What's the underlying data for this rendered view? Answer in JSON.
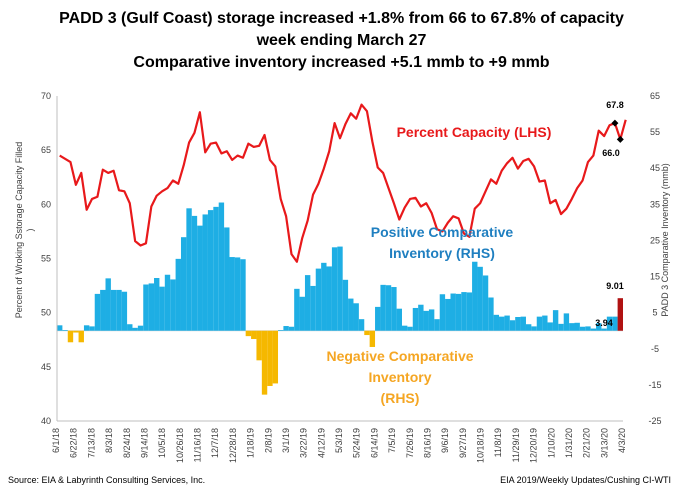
{
  "chart_data": {
    "type": "bar+line",
    "title_lines": [
      "PADD 3 (Gulf Coast) storage increased +1.8% from 66 to 67.8% of capacity",
      "week ending March 27",
      "Comparative inventory increased +5.1 mmb to +9 mmb"
    ],
    "ylabel": "Percent of Wroking Sstorage Capacity Filled",
    "ylabel_cont": ")",
    "y2label": "PADD 3 Comparative Inventory (mmb)",
    "ylim": [
      40,
      70
    ],
    "y2lim": [
      -25,
      65
    ],
    "lhs_ticks": [
      40,
      45,
      50,
      55,
      60,
      65,
      70
    ],
    "rhs_ticks": [
      -25,
      -15,
      -5,
      5,
      15,
      25,
      35,
      45,
      55,
      65
    ],
    "x_tick_labels": [
      "6/1/18",
      "6/22/18",
      "7/13/18",
      "8/3/18",
      "8/24/18",
      "9/14/18",
      "10/5/18",
      "10/26/18",
      "11/16/18",
      "12/7/18",
      "12/28/18",
      "1/18/19",
      "2/8/19",
      "3/1/19",
      "3/22/19",
      "4/12/19",
      "5/3/19",
      "5/24/19",
      "6/14/19",
      "7/5/19",
      "7/26/19",
      "8/16/19",
      "9/6/19",
      "9/27/19",
      "10/18/19",
      "11/8/19",
      "11/29/19",
      "12/20/19",
      "1/10/20",
      "1/31/20",
      "2/21/20",
      "3/13/20",
      "4/3/20"
    ],
    "series": [
      {
        "name": "Percent Capacity (LHS)",
        "axis": "left",
        "values": [
          64.5,
          64.2,
          63.9,
          61.8,
          62.9,
          59.5,
          60.5,
          60.7,
          63.2,
          62.9,
          63.1,
          61.3,
          61.2,
          60.1,
          56.6,
          56.2,
          56.4,
          59.8,
          60.8,
          61.2,
          61.5,
          62.2,
          61.9,
          63.6,
          65.7,
          66.6,
          68.5,
          64.8,
          65.6,
          65.7,
          64.7,
          64.9,
          64.1,
          64.5,
          64.3,
          65.6,
          65.3,
          65.4,
          66.4,
          64.1,
          63.5,
          60.5,
          58.9,
          55.4,
          54.7,
          56.9,
          58.5,
          60.9,
          61.9,
          63.3,
          64.9,
          67.5,
          66.1,
          67.4,
          68.4,
          67.9,
          69.2,
          68.6,
          65.8,
          63.4,
          62.9,
          61.5,
          60.1,
          58.6,
          59.7,
          60.5,
          60.6,
          59.8,
          60.1,
          59.2,
          57.7,
          57.5,
          58.3,
          58.9,
          58.7,
          57.3,
          57.0,
          59.6,
          60.1,
          61.2,
          62.3,
          61.9,
          63.1,
          63.8,
          64.3,
          63.3,
          64.0,
          64.2,
          63.5,
          62.1,
          62.2,
          60.1,
          60.4,
          59.1,
          59.6,
          60.5,
          61.5,
          62.2,
          63.9,
          64.5,
          66.8,
          66.3,
          67.3,
          67.5,
          66.0,
          67.8
        ]
      },
      {
        "name": "Comparative Inventory (RHS)",
        "axis": "right",
        "values": [
          1.5,
          0.2,
          -3.2,
          -0.5,
          -3.2,
          1.5,
          1.2,
          10.2,
          11.3,
          14.5,
          11.3,
          11.3,
          10.8,
          1.8,
          0.8,
          1.4,
          12.8,
          13.1,
          14.6,
          12.2,
          15.5,
          14.2,
          19.9,
          25.9,
          33.9,
          31.8,
          29.1,
          32.2,
          33.4,
          34.3,
          35.5,
          28.6,
          20.4,
          20.3,
          19.8,
          -1.5,
          -2.3,
          -8.2,
          -17.7,
          -15.3,
          -14.6,
          0.2,
          1.3,
          1.1,
          11.6,
          9.4,
          15.4,
          12.4,
          17.2,
          18.8,
          17.8,
          23.1,
          23.3,
          14.1,
          8.9,
          7.6,
          3.2,
          -1.2,
          -4.5,
          6.6,
          12.7,
          12.6,
          12.1,
          6.1,
          1.4,
          1.1,
          6.3,
          7.2,
          5.5,
          5.9,
          3.2,
          10.1,
          8.8,
          10.3,
          10.2,
          10.7,
          10.6,
          19.1,
          17.7,
          15.3,
          9.2,
          4.4,
          3.9,
          4.2,
          2.9,
          3.8,
          3.9,
          1.8,
          1.2,
          3.9,
          4.2,
          2.3,
          5.7,
          1.9,
          4.8,
          2.1,
          2.2,
          1.1,
          1.2,
          0.6,
          2.1,
          0.6,
          3.9,
          3.9,
          9.01
        ]
      }
    ],
    "annotations": [
      {
        "text": "Percent Capacity (LHS)",
        "color": "#e8191b"
      },
      {
        "text": "Positive Comparative",
        "color": "#1f7fc0"
      },
      {
        "text": "Inventory (RHS)",
        "color": "#1f7fc0"
      },
      {
        "text": "Negative Comparative",
        "color": "#f5a623"
      },
      {
        "text": "Inventory",
        "color": "#f5a623"
      },
      {
        "text": "(RHS)",
        "color": "#f5a623"
      }
    ],
    "value_labels": [
      "67.8",
      "66.0",
      "9.01",
      "3.94"
    ],
    "colors": {
      "line": "#e8191b",
      "positive": "#1eaee4",
      "negative": "#f5b800",
      "last_bar": "#b01212",
      "positive_label": "#1f7fc0",
      "negative_label": "#f5a623"
    }
  },
  "footer": {
    "source": "Source:  EIA & Labyrinth Consulting Services, Inc.",
    "credit": "EIA 2019/Weekly Updates/Cushing CI-WTI"
  }
}
